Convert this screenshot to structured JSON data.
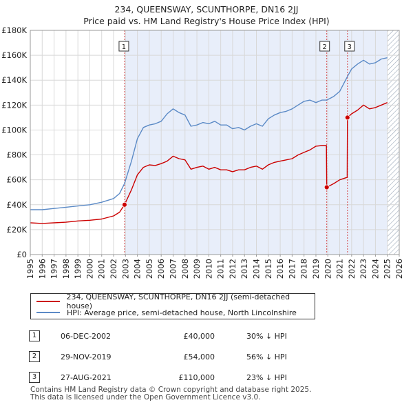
{
  "title_line1": "234, QUEENSWAY, SCUNTHORPE, DN16 2JJ",
  "title_line2": "Price paid vs. HM Land Registry's House Price Index (HPI)",
  "colors": {
    "hpi": "#5b8ac6",
    "price": "#cc0000",
    "shade": "#e8eefa",
    "hatch": "#9aa7b8"
  },
  "chart_data": {
    "type": "line",
    "xlim": [
      1995,
      2026
    ],
    "ylim": [
      0,
      180000
    ],
    "yticks": [
      0,
      20000,
      40000,
      60000,
      80000,
      100000,
      120000,
      140000,
      160000,
      180000
    ],
    "ytick_labels": [
      "£0",
      "£20K",
      "£40K",
      "£60K",
      "£80K",
      "£100K",
      "£120K",
      "£140K",
      "£160K",
      "£180K"
    ],
    "xticks": [
      "1995",
      "1996",
      "1997",
      "1998",
      "1999",
      "2000",
      "2001",
      "2002",
      "2003",
      "2004",
      "2005",
      "2006",
      "2007",
      "2008",
      "2009",
      "2010",
      "2011",
      "2012",
      "2013",
      "2014",
      "2015",
      "2016",
      "2017",
      "2018",
      "2019",
      "2020",
      "2021",
      "2022",
      "2023",
      "2024",
      "2025",
      "2026"
    ],
    "shaded_from": 2002.92,
    "data_end": 2025.0,
    "series": [
      {
        "name": "HPI: Average price, semi-detached house, North Lincolnshire",
        "x": [
          1995.0,
          1996.0,
          1997.0,
          1998.0,
          1999.0,
          2000.0,
          2001.0,
          2002.0,
          2002.5,
          2002.92,
          2003.5,
          2004.0,
          2004.5,
          2005.0,
          2005.5,
          2006.0,
          2006.5,
          2007.0,
          2007.5,
          2008.0,
          2008.5,
          2009.0,
          2009.5,
          2010.0,
          2010.5,
          2011.0,
          2011.5,
          2012.0,
          2012.5,
          2013.0,
          2013.5,
          2014.0,
          2014.5,
          2015.0,
          2015.5,
          2016.0,
          2016.5,
          2017.0,
          2017.5,
          2018.0,
          2018.5,
          2019.0,
          2019.5,
          2019.91,
          2020.5,
          2021.0,
          2021.65,
          2022.0,
          2022.5,
          2023.0,
          2023.5,
          2024.0,
          2024.5,
          2025.0
        ],
        "values": [
          36000,
          36000,
          37000,
          38000,
          39000,
          40000,
          42000,
          45000,
          49000,
          57000,
          75000,
          93000,
          102000,
          104000,
          105000,
          107000,
          113000,
          117000,
          114000,
          112000,
          103000,
          104000,
          106000,
          105000,
          107000,
          104000,
          104000,
          101000,
          102000,
          100000,
          103000,
          105000,
          103000,
          109000,
          112000,
          114000,
          115000,
          117000,
          120000,
          123000,
          124000,
          122000,
          124000,
          124000,
          127000,
          131000,
          143000,
          149000,
          153000,
          156000,
          153000,
          154000,
          157000,
          158000
        ]
      },
      {
        "name": "234, QUEENSWAY, SCUNTHORPE, DN16 2JJ (semi-detached house)",
        "x": [
          1995.0,
          1996.0,
          1997.0,
          1998.0,
          1999.0,
          2000.0,
          2001.0,
          2002.0,
          2002.5,
          2002.92,
          2003.5,
          2004.0,
          2004.5,
          2005.0,
          2005.5,
          2006.0,
          2006.5,
          2007.0,
          2007.5,
          2008.0,
          2008.5,
          2009.0,
          2009.5,
          2010.0,
          2010.5,
          2011.0,
          2011.5,
          2012.0,
          2012.5,
          2013.0,
          2013.5,
          2014.0,
          2014.5,
          2015.0,
          2015.5,
          2016.0,
          2016.5,
          2017.0,
          2017.5,
          2018.0,
          2018.5,
          2019.0,
          2019.5,
          2019.88,
          2019.91,
          2020.5,
          2021.0,
          2021.63,
          2021.65,
          2022.0,
          2022.5,
          2023.0,
          2023.5,
          2024.0,
          2024.5,
          2025.0
        ],
        "values": [
          25500,
          25000,
          25500,
          26000,
          27000,
          27500,
          28500,
          31000,
          34000,
          40000,
          52000,
          64000,
          70000,
          72000,
          71500,
          73000,
          75000,
          79000,
          77000,
          76000,
          68500,
          70000,
          71000,
          68500,
          70000,
          68000,
          68000,
          66500,
          68000,
          68000,
          70000,
          71000,
          68500,
          72000,
          74000,
          75000,
          76000,
          77000,
          80000,
          82000,
          84000,
          87000,
          87500,
          87500,
          54000,
          57000,
          60000,
          62000,
          110000,
          113000,
          116000,
          120000,
          117000,
          118000,
          120000,
          122000
        ]
      }
    ],
    "sales": [
      {
        "label": "1",
        "x": 2002.92,
        "value": 40000,
        "date": "06-DEC-2002",
        "price": "£40,000",
        "hpi": "30% ↓ HPI"
      },
      {
        "label": "2",
        "x": 2019.91,
        "value": 54000,
        "date": "29-NOV-2019",
        "price": "£54,000",
        "hpi": "56% ↓ HPI"
      },
      {
        "label": "3",
        "x": 2021.65,
        "value": 110000,
        "date": "27-AUG-2021",
        "price": "£110,000",
        "hpi": "23% ↓ HPI"
      }
    ]
  },
  "legend": {
    "price_label": "234, QUEENSWAY, SCUNTHORPE, DN16 2JJ (semi-detached house)",
    "hpi_label": "HPI: Average price, semi-detached house, North Lincolnshire"
  },
  "footer": {
    "line1": "Contains HM Land Registry data © Crown copyright and database right 2025.",
    "line2": "This data is licensed under the Open Government Licence v3.0."
  }
}
